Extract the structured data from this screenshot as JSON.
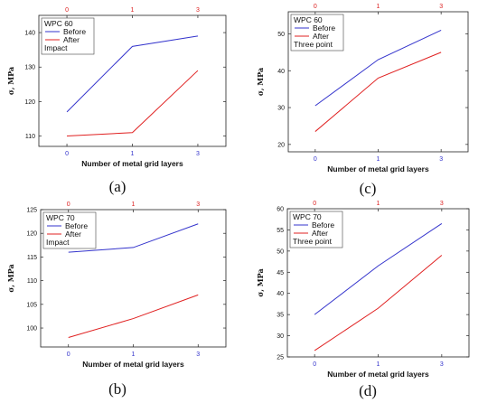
{
  "chart_data": [
    {
      "type": "line",
      "caption": "(a)",
      "legend_title": "WPC 60",
      "legend_note": "Impact",
      "xlabel": "Number of metal grid layers",
      "ylabel": "σ, MPa",
      "categories": [
        "0",
        "1",
        "3"
      ],
      "ylim": [
        107,
        145
      ],
      "yticks": [
        110,
        120,
        130,
        140
      ],
      "series": [
        {
          "name": "Before",
          "color": "#3333cc",
          "values": [
            117,
            136,
            139
          ]
        },
        {
          "name": "After",
          "color": "#e02020",
          "values": [
            110,
            111,
            129
          ]
        }
      ],
      "grid": false
    },
    {
      "type": "line",
      "caption": "(c)",
      "legend_title": "WPC 60",
      "legend_note": "Three point",
      "xlabel": "Number of metal grid layers",
      "ylabel": "σ, MPa",
      "categories": [
        "0",
        "1",
        "3"
      ],
      "ylim": [
        18,
        56
      ],
      "yticks": [
        20,
        30,
        40,
        50
      ],
      "series": [
        {
          "name": "Before",
          "color": "#3333cc",
          "values": [
            30.5,
            43,
            51
          ]
        },
        {
          "name": "After",
          "color": "#e02020",
          "values": [
            23.5,
            38,
            45
          ]
        }
      ],
      "grid": false
    },
    {
      "type": "line",
      "caption": "(b)",
      "legend_title": "WPC 70",
      "legend_note": "Impact",
      "xlabel": "Number of metal grid layers",
      "ylabel": "σ, MPa",
      "categories": [
        "0",
        "1",
        "3"
      ],
      "ylim": [
        96,
        125
      ],
      "yticks": [
        100,
        105,
        110,
        115,
        120,
        125
      ],
      "series": [
        {
          "name": "Before",
          "color": "#3333cc",
          "values": [
            116,
            117,
            122
          ]
        },
        {
          "name": "After",
          "color": "#e02020",
          "values": [
            98,
            102,
            107
          ]
        }
      ],
      "grid": false
    },
    {
      "type": "line",
      "caption": "(d)",
      "legend_title": "WPC 70",
      "legend_note": "Three point",
      "xlabel": "Number of metal grid layers",
      "ylabel": "σ, MPa",
      "categories": [
        "0",
        "1",
        "3"
      ],
      "ylim": [
        25,
        60
      ],
      "yticks": [
        25,
        30,
        35,
        40,
        45,
        50,
        55,
        60
      ],
      "series": [
        {
          "name": "Before",
          "color": "#3333cc",
          "values": [
            35,
            46.5,
            56.5
          ]
        },
        {
          "name": "After",
          "color": "#e02020",
          "values": [
            26.5,
            36.5,
            49
          ]
        }
      ],
      "grid": false
    }
  ]
}
